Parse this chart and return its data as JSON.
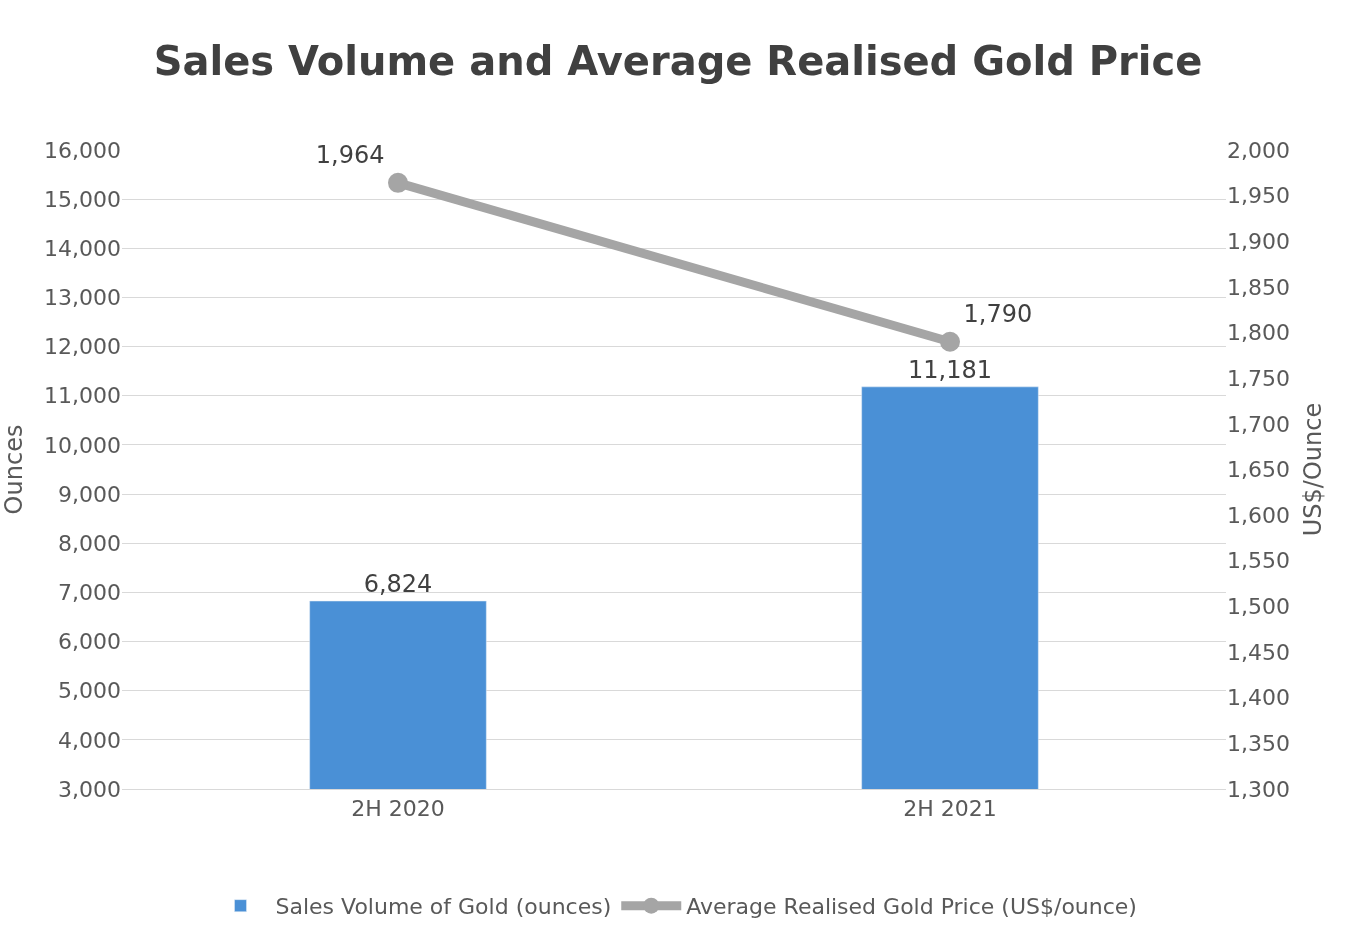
{
  "chart_data": {
    "type": "bar",
    "title": "Sales Volume and Average Realised Gold Price",
    "categories": [
      "2H 2020",
      "2H 2021"
    ],
    "series": [
      {
        "name": "Sales Volume of Gold (ounces)",
        "color": "#4a90d6",
        "values": [
          6824,
          11181
        ],
        "value_labels": [
          "6,824",
          "11,181"
        ]
      },
      {
        "name": "Average Realised Gold Price (US$/ounce)",
        "type": "line",
        "axis": "y2",
        "color": "#a5a5a5",
        "values": [
          1964,
          1790
        ],
        "value_labels": [
          "1,964",
          "1,790"
        ]
      }
    ],
    "ylabel": "Ounces",
    "y2label": "US$/Ounce",
    "ylim": [
      3000,
      16000
    ],
    "yticks": [
      {
        "value": 3000,
        "label": "3,000"
      },
      {
        "value": 4000,
        "label": "4,000"
      },
      {
        "value": 5000,
        "label": "5,000"
      },
      {
        "value": 6000,
        "label": "6,000"
      },
      {
        "value": 7000,
        "label": "7,000"
      },
      {
        "value": 8000,
        "label": "8,000"
      },
      {
        "value": 9000,
        "label": "9,000"
      },
      {
        "value": 10000,
        "label": "10,000"
      },
      {
        "value": 11000,
        "label": "11,000"
      },
      {
        "value": 12000,
        "label": "12,000"
      },
      {
        "value": 13000,
        "label": "13,000"
      },
      {
        "value": 14000,
        "label": "14,000"
      },
      {
        "value": 15000,
        "label": "15,000"
      },
      {
        "value": 16000,
        "label": "16,000"
      }
    ],
    "y2lim": [
      1300,
      2000
    ],
    "y2ticks": [
      {
        "value": 1300,
        "label": "1,300"
      },
      {
        "value": 1350,
        "label": "1,350"
      },
      {
        "value": 1400,
        "label": "1,400"
      },
      {
        "value": 1450,
        "label": "1,450"
      },
      {
        "value": 1500,
        "label": "1,500"
      },
      {
        "value": 1550,
        "label": "1,550"
      },
      {
        "value": 1600,
        "label": "1,600"
      },
      {
        "value": 1650,
        "label": "1,650"
      },
      {
        "value": 1700,
        "label": "1,700"
      },
      {
        "value": 1750,
        "label": "1,750"
      },
      {
        "value": 1800,
        "label": "1,800"
      },
      {
        "value": 1850,
        "label": "1,850"
      },
      {
        "value": 1900,
        "label": "1,900"
      },
      {
        "value": 1950,
        "label": "1,950"
      },
      {
        "value": 2000,
        "label": "2,000"
      }
    ],
    "grid": "y",
    "legend": "bottom",
    "marker": "circle",
    "line_style": "solid"
  }
}
